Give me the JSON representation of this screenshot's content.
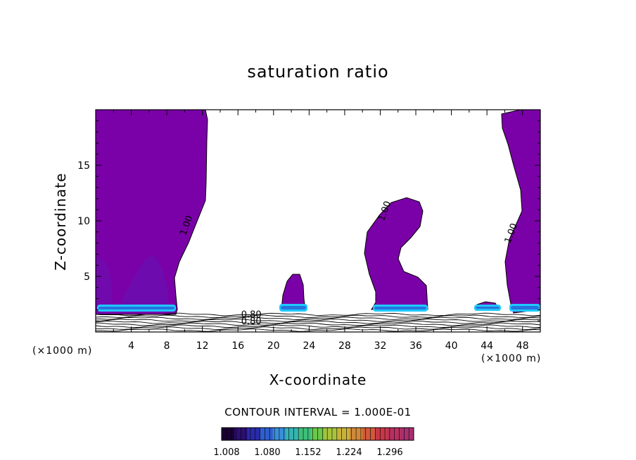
{
  "title": "saturation ratio",
  "xlabel": "X-coordinate",
  "ylabel": "Z-coordinate",
  "x_unit": "(×1000 m)",
  "y_unit": "(×1000 m)",
  "contour_interval": "CONTOUR INTERVAL = 1.000E-01",
  "chart_data": {
    "type": "heatmap",
    "title": "saturation ratio",
    "xlabel": "X-coordinate",
    "ylabel": "Z-coordinate",
    "xlim": [
      0,
      50
    ],
    "ylim": [
      0,
      20
    ],
    "x_ticks": [
      4,
      8,
      12,
      16,
      20,
      24,
      28,
      32,
      36,
      40,
      44,
      48
    ],
    "y_ticks": [
      5,
      10,
      15
    ],
    "contour_labels": [
      {
        "text": "1.00",
        "x": 10.5,
        "y": 9.5
      },
      {
        "text": "1.00",
        "x": 32.8,
        "y": 10.8
      },
      {
        "text": "1.00",
        "x": 47.0,
        "y": 8.8
      },
      {
        "text": "0.80",
        "x": 17.5,
        "y": 1.3
      },
      {
        "text": "0.80",
        "x": 17.5,
        "y": 0.7
      }
    ],
    "colorbar": {
      "ticks": [
        "1.008",
        "1.080",
        "1.152",
        "1.224",
        "1.296"
      ],
      "colors": [
        "#1a0033",
        "#2b1070",
        "#2a2aa8",
        "#2e5fd0",
        "#3a8fd8",
        "#35b3b3",
        "#3ec07a",
        "#6bc84a",
        "#a8c43c",
        "#c9b23a",
        "#d08a38",
        "#d05a3a",
        "#c83848",
        "#b83060",
        "#a83070"
      ],
      "fill_color": "#7a00a8",
      "accent_color": "#1ec8ff"
    }
  }
}
